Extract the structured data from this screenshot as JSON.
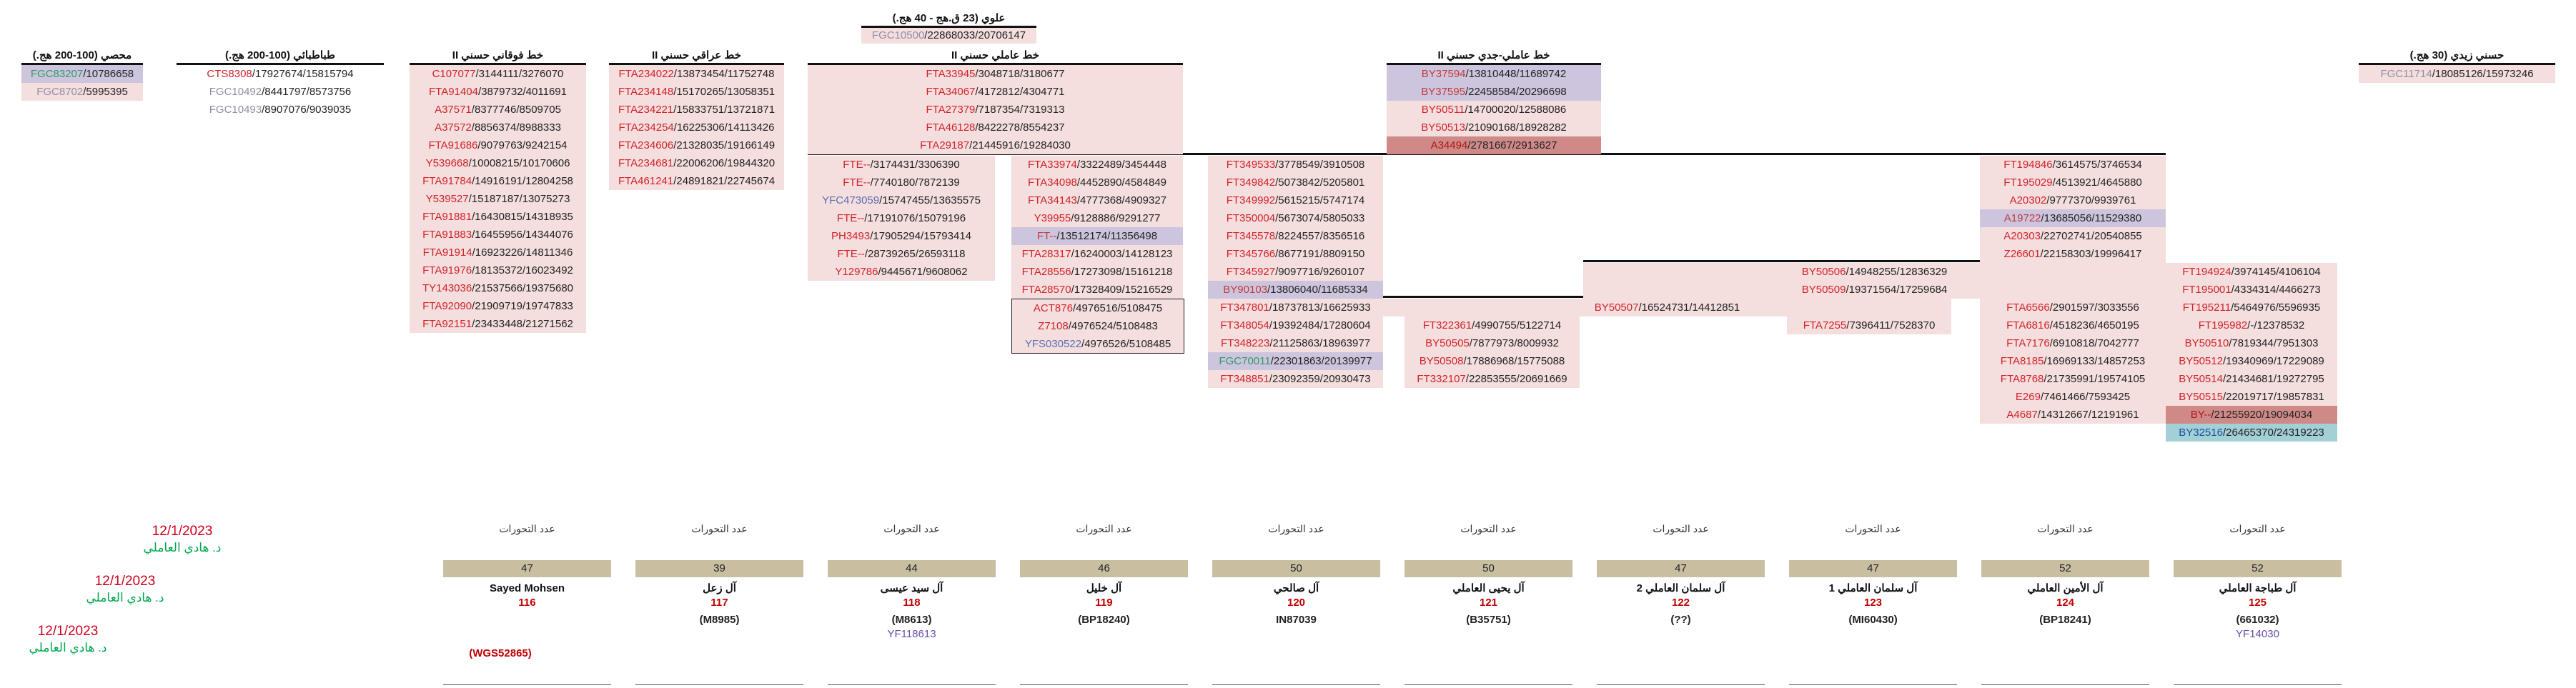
{
  "top": {
    "title": "علوي (23 ق.هج - 40 هج.)",
    "cell": {
      "snp": "FGC10500",
      "rest": "/22868033/20706147",
      "kind": "k-gray"
    }
  },
  "blocks": [
    {
      "id": "muhassi",
      "title": "محصي (100-200 هج.)",
      "rows": [
        {
          "snp": "FGC83207",
          "rest": "/10786658",
          "kind": "k-green",
          "fill": "c-purple"
        },
        {
          "snp": "FGC8702",
          "rest": "/5995395",
          "kind": "k-gray"
        }
      ]
    },
    {
      "id": "tabatabai",
      "title": "طباطبائي (100-200 هج.)",
      "plain": true,
      "rows": [
        {
          "snp": "CTS8308",
          "rest": "/17927674/15815794"
        },
        {
          "snp": "FGC10492",
          "rest": "/8441797/8573756",
          "kind": "k-gray"
        },
        {
          "snp": "FGC10493",
          "rest": "/8907076/9039035",
          "kind": "k-gray"
        }
      ]
    },
    {
      "id": "fawqani",
      "title": "خط فوقاني حسني II",
      "rows": [
        {
          "snp": "C107077",
          "rest": "/3144111/3276070"
        },
        {
          "snp": "FTA91404",
          "rest": "/3879732/4011691"
        },
        {
          "snp": "A37571",
          "rest": "/8377746/8509705"
        },
        {
          "snp": "A37572",
          "rest": "/8856374/8988333"
        },
        {
          "snp": "FTA91686",
          "rest": "/9079763/9242154"
        },
        {
          "snp": "Y539668",
          "rest": "/10008215/10170606"
        },
        {
          "snp": "FTA91784",
          "rest": "/14916191/12804258"
        },
        {
          "snp": "Y539527",
          "rest": "/15187187/13075273"
        },
        {
          "snp": "FTA91881",
          "rest": "/16430815/14318935"
        },
        {
          "snp": "FTA91883",
          "rest": "/16455956/14344076"
        },
        {
          "snp": "FTA91914",
          "rest": "/16923226/14811346"
        },
        {
          "snp": "FTA91976",
          "rest": "/18135372/16023492"
        },
        {
          "snp": "TY143036",
          "rest": "/21537566/19375680"
        },
        {
          "snp": "FTA92090",
          "rest": "/21909719/19747833"
        },
        {
          "snp": "FTA92151",
          "rest": "/23433448/21271562"
        }
      ]
    },
    {
      "id": "iraqi",
      "title": "خط عراقي حسني II",
      "rows": [
        {
          "snp": "FTA234022",
          "rest": "/13873454/11752748"
        },
        {
          "snp": "FTA234148",
          "rest": "/15170265/13058351"
        },
        {
          "snp": "FTA234221",
          "rest": "/15833751/13721871"
        },
        {
          "snp": "FTA234254",
          "rest": "/16225306/14113426"
        },
        {
          "snp": "FTA234606",
          "rest": "/21328035/19166149"
        },
        {
          "snp": "FTA234681",
          "rest": "/22006206/19844320"
        },
        {
          "snp": "FTA461241",
          "rest": "/24891821/22745674"
        }
      ]
    },
    {
      "id": "amili_main",
      "title": "خط عاملي حسني II",
      "rows": [
        {
          "snp": "FTA33945",
          "rest": "/3048718/3180677"
        },
        {
          "snp": "FTA34067",
          "rest": "/4172812/4304771"
        },
        {
          "snp": "FTA27379",
          "rest": "/7187354/7319313"
        },
        {
          "snp": "FTA46128",
          "rest": "/8422278/8554237"
        },
        {
          "snp": "FTA29187",
          "rest": "/21445916/19284030"
        }
      ]
    },
    {
      "id": "amili_a",
      "rows": [
        {
          "snp": "FTE--",
          "rest": "/3174431/3306390"
        },
        {
          "snp": "FTE--",
          "rest": "/7740180/7872139"
        },
        {
          "snp": "YFC473059",
          "rest": "/15747455/13635575",
          "kind": "k-blue"
        },
        {
          "snp": "FTE--",
          "rest": "/17191076/15079196"
        },
        {
          "snp": "PH3493",
          "rest": "/17905294/15793414"
        },
        {
          "snp": "FTE--",
          "rest": "/28739265/26593118"
        },
        {
          "snp": "Y129786",
          "rest": "/9445671/9608062"
        }
      ]
    },
    {
      "id": "amili_b",
      "rows": [
        {
          "snp": "FTA33974",
          "rest": "/3322489/3454448"
        },
        {
          "snp": "FTA34098",
          "rest": "/4452890/4584849"
        },
        {
          "snp": "FTA34143",
          "rest": "/4777368/4909327"
        },
        {
          "snp": "Y39955",
          "rest": "/9128886/9291277"
        },
        {
          "snp": "FT--",
          "rest": "/13512174/11356498",
          "fill": "c-purple"
        },
        {
          "snp": "FTA28317",
          "rest": "/16240003/14128123"
        },
        {
          "snp": "FTA28556",
          "rest": "/17273098/15161218"
        },
        {
          "snp": "FTA28570",
          "rest": "/17328409/15216529"
        }
      ]
    },
    {
      "id": "amili_b_box",
      "boxed": true,
      "rows": [
        {
          "snp": "ACT876",
          "rest": "/4976516/5108475"
        },
        {
          "snp": "Z7108",
          "rest": "/4976524/5108483"
        },
        {
          "snp": "YFS030522",
          "rest": "/4976526/5108485",
          "kind": "k-blue"
        }
      ]
    },
    {
      "id": "amili_jadd",
      "title": "خط عاملي-جدي حسني II",
      "rows": [
        {
          "snp": "BY37594",
          "rest": "/13810448/11689742",
          "fill": "c-purple"
        },
        {
          "snp": "BY37595",
          "rest": "/22458584/20296698",
          "fill": "c-purple"
        },
        {
          "snp": "BY50511",
          "rest": "/14700020/12588086"
        },
        {
          "snp": "BY50513",
          "rest": "/21090168/18928282"
        },
        {
          "snp": "A34494",
          "rest": "/2781667/2913627",
          "fill": "c-red"
        }
      ]
    },
    {
      "id": "salihi",
      "rows": [
        {
          "snp": "FT349533",
          "rest": "/3778549/3910508"
        },
        {
          "snp": "FT349842",
          "rest": "/5073842/5205801"
        },
        {
          "snp": "FT349992",
          "rest": "/5615215/5747174"
        },
        {
          "snp": "FT350004",
          "rest": "/5673074/5805033"
        },
        {
          "snp": "FT345578",
          "rest": "/8224557/8356516"
        },
        {
          "snp": "FT345766",
          "rest": "/8677191/8809150"
        },
        {
          "snp": "FT345927",
          "rest": "/9097716/9260107"
        },
        {
          "snp": "BY90103",
          "rest": "/13806040/11685334",
          "fill": "c-purple"
        },
        {
          "snp": "FT347801",
          "rest": "/18737813/16625933"
        },
        {
          "snp": "FT348054",
          "rest": "/19392484/17280604"
        },
        {
          "snp": "FT348223",
          "rest": "/21125863/18963977"
        },
        {
          "snp": "FGC70011",
          "rest": "/22301863/20139977",
          "kind": "k-green",
          "fill": "c-purple"
        },
        {
          "snp": "FT348851",
          "rest": "/23092359/20930473"
        }
      ]
    },
    {
      "id": "amin",
      "rows": [
        {
          "snp": "FT194846",
          "rest": "/3614575/3746534"
        },
        {
          "snp": "FT195029",
          "rest": "/4513921/4645880"
        },
        {
          "snp": "A20302",
          "rest": "/9777370/9939761"
        },
        {
          "snp": "A19722",
          "rest": "/13685056/11529380",
          "fill": "c-purple"
        },
        {
          "snp": "A20303",
          "rest": "/22702741/20540855"
        },
        {
          "snp": "Z26601",
          "rest": "/22158303/19996417"
        }
      ]
    },
    {
      "id": "mid_by",
      "rows": [
        {
          "snp": "BY50506",
          "rest": "/14948255/12836329"
        },
        {
          "snp": "BY50509",
          "rest": "/19371564/17259684"
        }
      ]
    },
    {
      "id": "mid_by2",
      "rows": [
        {
          "snp": "BY50507",
          "rest": "/16524731/14412851"
        }
      ]
    },
    {
      "id": "yahya",
      "rows": [
        {
          "snp": "FT322361",
          "rest": "/4990755/5122714"
        },
        {
          "snp": "BY50505",
          "rest": "/7877973/8009932"
        },
        {
          "snp": "BY50508",
          "rest": "/17886968/15775088"
        },
        {
          "snp": "FT332107",
          "rest": "/22853555/20691669"
        }
      ]
    },
    {
      "id": "salman1",
      "rows": [
        {
          "snp": "FTA7255",
          "rest": "/7396411/7528370"
        }
      ]
    },
    {
      "id": "amin_b",
      "rows": [
        {
          "snp": "FTA6566",
          "rest": "/2901597/3033556"
        },
        {
          "snp": "FTA6816",
          "rest": "/4518236/4650195"
        },
        {
          "snp": "FTA7176",
          "rest": "/6910818/7042777"
        },
        {
          "snp": "FTA8185",
          "rest": "/16969133/14857253"
        },
        {
          "snp": "FTA8768",
          "rest": "/21735991/19574105"
        },
        {
          "snp": "E269",
          "rest": "/7461466/7593425"
        },
        {
          "snp": "A4687",
          "rest": "/14312667/12191961"
        }
      ]
    },
    {
      "id": "tabajeh",
      "rows": [
        {
          "snp": "FT194924",
          "rest": "/3974145/4106104"
        },
        {
          "snp": "FT195001",
          "rest": "/4334314/4466273"
        },
        {
          "snp": "FT195211",
          "rest": "/5464976/5596935"
        },
        {
          "snp": "FT195982",
          "rest": "/-/12378532"
        },
        {
          "snp": "BY50510",
          "rest": "/7819344/7951303"
        },
        {
          "snp": "BY50512",
          "rest": "/19340969/17229089"
        },
        {
          "snp": "BY50514",
          "rest": "/21434681/19272795"
        },
        {
          "snp": "BY50515",
          "rest": "/22019717/19857831"
        },
        {
          "snp": "BY--",
          "rest": "/21255920/19094034",
          "fill": "c-red"
        },
        {
          "snp": "BY32516",
          "rest": "/26465370/24319223",
          "fill": "c-teal"
        }
      ]
    },
    {
      "id": "zaydi",
      "title": "حسني زيدي (30 هج.)",
      "rows": [
        {
          "snp": "FGC11714",
          "rest": "/18085126/15973246",
          "kind": "k-gray"
        }
      ]
    }
  ],
  "columns": [
    {
      "mut_label": "عدد التحورات",
      "count": "47",
      "family": "Sayed Mohsen",
      "num": "116",
      "hap": "",
      "sub": ""
    },
    {
      "mut_label": "عدد التحورات",
      "count": "39",
      "family": "آل زعل",
      "num": "117",
      "hap": "(M8985)",
      "sub": ""
    },
    {
      "mut_label": "عدد التحورات",
      "count": "44",
      "family": "آل سيد عيسى",
      "num": "118",
      "hap": "(M8613)",
      "sub": "YF118613"
    },
    {
      "mut_label": "عدد التحورات",
      "count": "46",
      "family": "آل خليل",
      "num": "119",
      "hap": "(BP18240)",
      "sub": ""
    },
    {
      "mut_label": "عدد التحورات",
      "count": "50",
      "family": "آل صالحي",
      "num": "120",
      "hap": "IN87039",
      "sub": ""
    },
    {
      "mut_label": "عدد التحورات",
      "count": "50",
      "family": "آل يحيى العاملي",
      "num": "121",
      "hap": "(B35751)",
      "sub": ""
    },
    {
      "mut_label": "عدد التحورات",
      "count": "47",
      "family": "آل سلمان العاملي 2",
      "num": "122",
      "hap": "(??)",
      "sub": ""
    },
    {
      "mut_label": "عدد التحورات",
      "count": "47",
      "family": "آل سلمان العاملي 1",
      "num": "123",
      "hap": "(MI60430)",
      "sub": ""
    },
    {
      "mut_label": "عدد التحورات",
      "count": "52",
      "family": "آل الأمين العاملي",
      "num": "124",
      "hap": "(BP18241)",
      "sub": ""
    },
    {
      "mut_label": "عدد التحورات",
      "count": "52",
      "family": "آل طباجة العاملي",
      "num": "125",
      "hap": "(661032)",
      "sub": "YF14030"
    }
  ],
  "extra_hap": "(WGS52865)",
  "signatures": [
    {
      "date": "12/1/2023",
      "name": "د. هادي العاملي"
    },
    {
      "date": "12/1/2023",
      "name": "د. هادي العاملي"
    },
    {
      "date": "12/1/2023",
      "name": "د. هادي العاملي"
    }
  ]
}
